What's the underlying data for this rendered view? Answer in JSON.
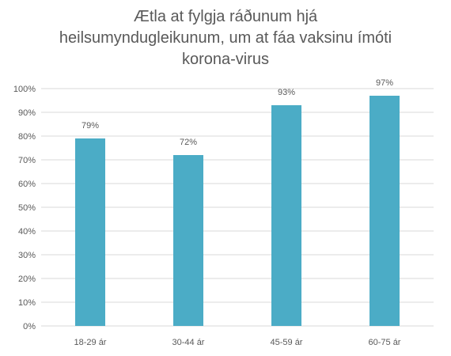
{
  "chart_data": {
    "type": "bar",
    "title_lines": [
      "Ætla at fylgja ráðunum hjá",
      "heilsumyndugleikunum, um at fáa vaksinu ímóti",
      "korona-virus"
    ],
    "categories": [
      "18-29 ár",
      "30-44 ár",
      "45-59 ár",
      "60-75 ár"
    ],
    "values": [
      79,
      72,
      93,
      97
    ],
    "data_labels": [
      "79%",
      "72%",
      "93%",
      "97%"
    ],
    "ylim": [
      0,
      100
    ],
    "y_ticks": [
      0,
      10,
      20,
      30,
      40,
      50,
      60,
      70,
      80,
      90,
      100
    ],
    "y_tick_labels": [
      "0%",
      "10%",
      "20%",
      "30%",
      "40%",
      "50%",
      "60%",
      "70%",
      "80%",
      "90%",
      "100%"
    ],
    "xlabel": "",
    "ylabel": "",
    "grid": true,
    "legend": "none",
    "bar_color": "#4BACC6",
    "grid_color": "#D9D9D9",
    "text_color": "#595959"
  }
}
